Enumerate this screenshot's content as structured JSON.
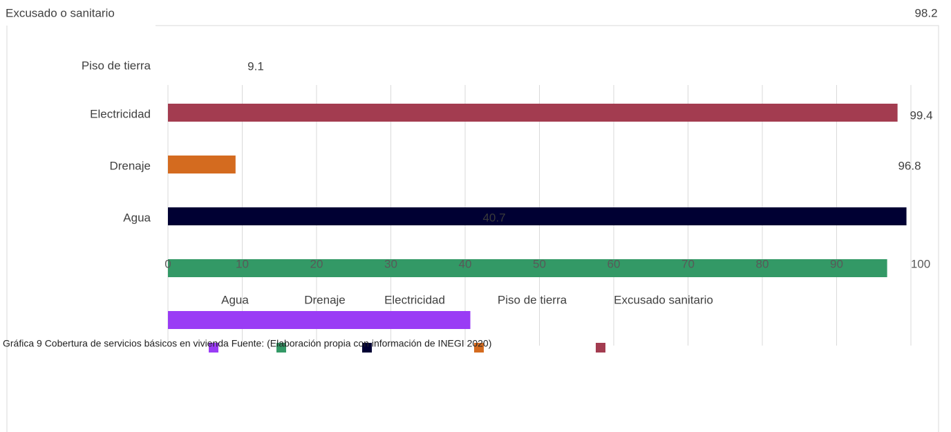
{
  "chart_data": {
    "type": "bar",
    "orientation": "horizontal",
    "categories": [
      "Agua",
      "Drenaje",
      "Electricidad",
      "Piso de tierra",
      "Excusado o sanitario"
    ],
    "values": [
      40.7,
      96.8,
      99.4,
      9.1,
      98.2
    ],
    "colors": [
      "#9a3cf5",
      "#339966",
      "#000033",
      "#d46b1f",
      "#a33c50"
    ],
    "legend": [
      "Agua",
      "Drenaje",
      "Electricidad",
      "Piso de tierra",
      "Excusado sanitario"
    ],
    "xlim": [
      0,
      100
    ],
    "xticks": [
      0,
      10,
      20,
      30,
      40,
      50,
      60,
      70,
      80,
      90,
      100
    ],
    "grid": true,
    "caption": "Gráfica 9 Cobertura de servicios básicos en vivienda Fuente: (Elaboración propia con información de INEGI 2020)"
  }
}
